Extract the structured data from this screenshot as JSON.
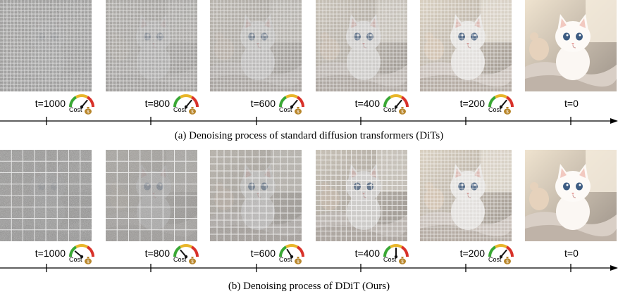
{
  "rows": [
    {
      "caption": "(a) Denoising process of standard diffusion transformers (DiTs)",
      "steps": [
        {
          "t": "t=1000",
          "cost": "Cost",
          "noise": 1.0,
          "grid_cells": 26,
          "gauge_level": 0.72
        },
        {
          "t": "t=800",
          "cost": "Cost",
          "noise": 0.8,
          "grid_cells": 26,
          "gauge_level": 0.72
        },
        {
          "t": "t=600",
          "cost": "Cost",
          "noise": 0.6,
          "grid_cells": 26,
          "gauge_level": 0.72
        },
        {
          "t": "t=400",
          "cost": "Cost",
          "noise": 0.4,
          "grid_cells": 26,
          "gauge_level": 0.72
        },
        {
          "t": "t=200",
          "cost": "Cost",
          "noise": 0.2,
          "grid_cells": 26,
          "gauge_level": 0.72
        },
        {
          "t": "t=0",
          "noise": 0.0,
          "grid_cells": 0
        }
      ]
    },
    {
      "caption": "(b) Denoising process of DDiT (Ours)",
      "steps": [
        {
          "t": "t=1000",
          "cost": "Cost",
          "noise": 1.0,
          "grid_cells": 8,
          "gauge_level": 0.22
        },
        {
          "t": "t=800",
          "cost": "Cost",
          "noise": 0.8,
          "grid_cells": 8,
          "gauge_level": 0.28
        },
        {
          "t": "t=600",
          "cost": "Cost",
          "noise": 0.6,
          "grid_cells": 13,
          "gauge_level": 0.32
        },
        {
          "t": "t=400",
          "cost": "Cost",
          "noise": 0.4,
          "grid_cells": 18,
          "gauge_level": 0.5
        },
        {
          "t": "t=200",
          "cost": "Cost",
          "noise": 0.2,
          "grid_cells": 26,
          "gauge_level": 0.72
        },
        {
          "t": "t=0",
          "noise": 0.0,
          "grid_cells": 0
        }
      ]
    }
  ],
  "colors": {
    "gauge_green": "#3aa835",
    "gauge_yellow": "#e9b62a",
    "gauge_red": "#d8322a",
    "bag": "#b8862b",
    "axis": "#000000"
  }
}
